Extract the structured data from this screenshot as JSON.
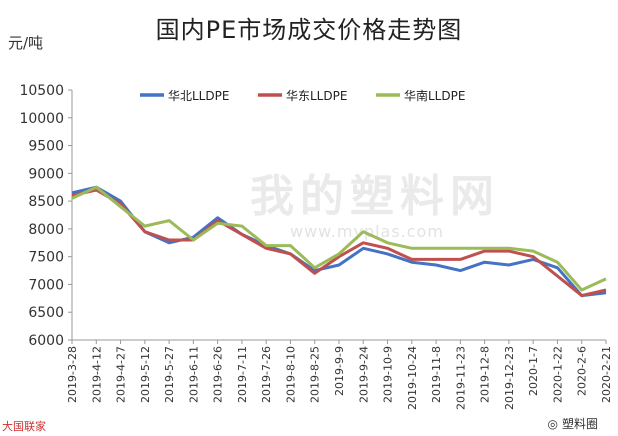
{
  "chart_data": {
    "type": "line",
    "title": "国内PE市场成交价格走势图",
    "ylabel": "元/吨",
    "xlabel": "",
    "ylim": [
      6000,
      10500
    ],
    "yticks": [
      6000,
      6500,
      7000,
      7500,
      8000,
      8500,
      9000,
      9500,
      10000,
      10500
    ],
    "grid": false,
    "legend_position": "top",
    "x": [
      "2019-3-28",
      "2019-4-12",
      "2019-4-27",
      "2019-5-12",
      "2019-5-27",
      "2019-6-11",
      "2019-6-26",
      "2019-7-11",
      "2019-7-26",
      "2019-8-10",
      "2019-8-25",
      "2019-9-9",
      "2019-9-24",
      "2019-10-9",
      "2019-10-24",
      "2019-11-8",
      "2019-11-23",
      "2019-12-8",
      "2019-12-23",
      "2020-1-7",
      "2020-1-22",
      "2020-2-6",
      "2020-2-21"
    ],
    "series": [
      {
        "name": "华北LLDPE",
        "color": "#4472C4",
        "values": [
          8650,
          8750,
          8500,
          7950,
          7750,
          7850,
          8200,
          7900,
          7700,
          7550,
          7250,
          7350,
          7650,
          7550,
          7400,
          7350,
          7250,
          7400,
          7350,
          7450,
          7300,
          6800,
          6850
        ]
      },
      {
        "name": "华东LLDPE",
        "color": "#C0504D",
        "values": [
          8600,
          8700,
          8450,
          7950,
          7800,
          7800,
          8150,
          7900,
          7650,
          7550,
          7200,
          7500,
          7750,
          7650,
          7450,
          7450,
          7450,
          7600,
          7600,
          7500,
          7150,
          6800,
          6900
        ]
      },
      {
        "name": "华南LLDPE",
        "color": "#9BBB59",
        "values": [
          8550,
          8750,
          8400,
          8050,
          8150,
          7800,
          8100,
          8050,
          7700,
          7700,
          7300,
          7550,
          7950,
          7750,
          7650,
          7650,
          7650,
          7650,
          7650,
          7600,
          7400,
          6900,
          7100
        ]
      }
    ]
  },
  "watermark": {
    "brand": "我的塑料网",
    "site": "www.myplas.com"
  },
  "corner": {
    "left": "大国联家",
    "right": "塑料圈"
  }
}
